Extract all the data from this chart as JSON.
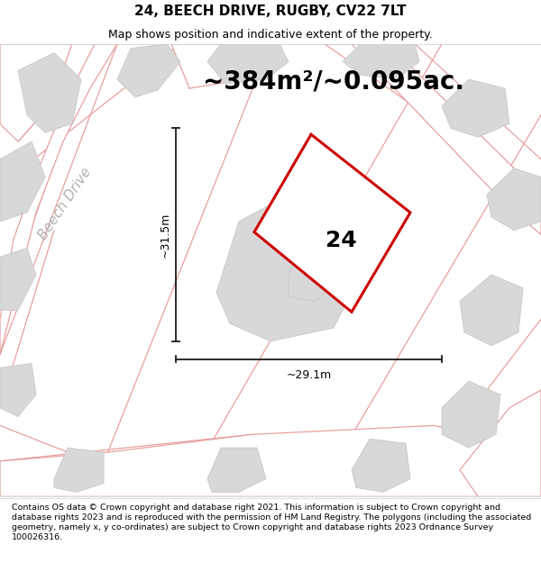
{
  "title": "24, BEECH DRIVE, RUGBY, CV22 7LT",
  "subtitle": "Map shows position and indicative extent of the property.",
  "area_text": "~384m²/~0.095ac.",
  "label_number": "24",
  "dim_horizontal": "~29.1m",
  "dim_vertical": "~31.5m",
  "street_label": "Beech Drive",
  "footer_text": "Contains OS data © Crown copyright and database right 2021. This information is subject to Crown copyright and database rights 2023 and is reproduced with the permission of HM Land Registry. The polygons (including the associated geometry, namely x, y co-ordinates) are subject to Crown copyright and database rights 2023 Ordnance Survey 100026316.",
  "map_bg": "#ebebeb",
  "plot_fill": "#ffffff",
  "plot_edge": "#cc0000",
  "road_fill": "#ffffff",
  "road_edge": "#e8a0a0",
  "block_fill": "#d8d8d8",
  "block_edge": "#c8c8c8",
  "dim_line_color": "#1a1a1a",
  "title_fontsize": 11,
  "subtitle_fontsize": 9,
  "area_fontsize": 20,
  "label_fontsize": 18,
  "dim_fontsize": 9,
  "street_fontsize": 11,
  "footer_fontsize": 6.8,
  "road_lw": 0.9,
  "block_lw": 0.6
}
